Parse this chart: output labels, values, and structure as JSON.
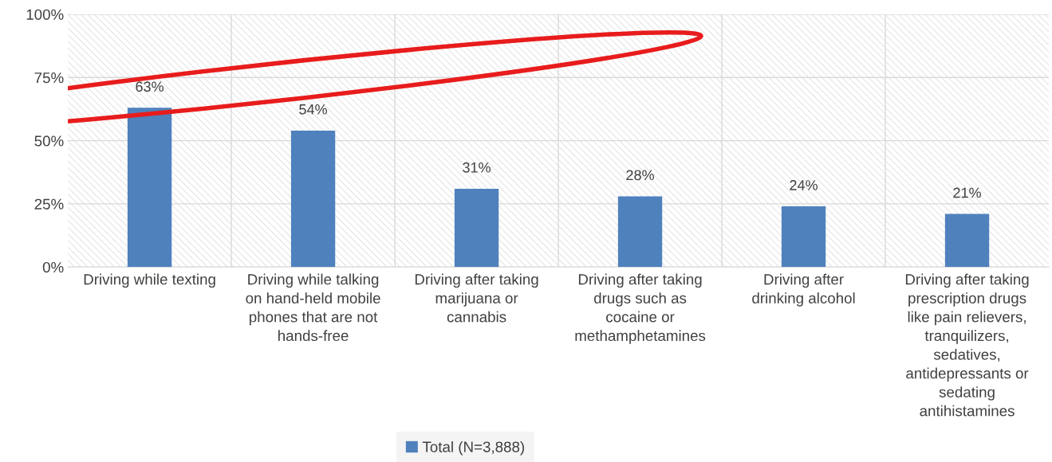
{
  "chart_data": {
    "type": "bar",
    "categories": [
      "Driving while texting",
      "Driving while talking\non hand-held mobile\nphones that are not\nhands-free",
      "Driving after taking\nmarijuana or\ncannabis",
      "Driving after taking\ndrugs such as\ncocaine or\nmethamphetamines",
      "Driving after\ndrinking alcohol",
      "Driving after taking\nprescription drugs\nlike pain relievers,\ntranquilizers,\nsedatives,\nantidepressants or\nsedating\nantihistamines"
    ],
    "series": [
      {
        "name": "Total (N=3,888)",
        "color": "#4f81bd",
        "values": [
          63,
          54,
          31,
          28,
          24,
          21
        ],
        "value_labels": [
          "63%",
          "54%",
          "31%",
          "28%",
          "24%",
          "21%"
        ]
      }
    ],
    "ylim": [
      0,
      100
    ],
    "yticks": [
      {
        "value": 0,
        "label": "0%"
      },
      {
        "value": 25,
        "label": "25%"
      },
      {
        "value": 50,
        "label": "50%"
      },
      {
        "value": 75,
        "label": "75%"
      },
      {
        "value": 100,
        "label": "100%"
      }
    ],
    "grid": true,
    "legend": "bottom"
  }
}
